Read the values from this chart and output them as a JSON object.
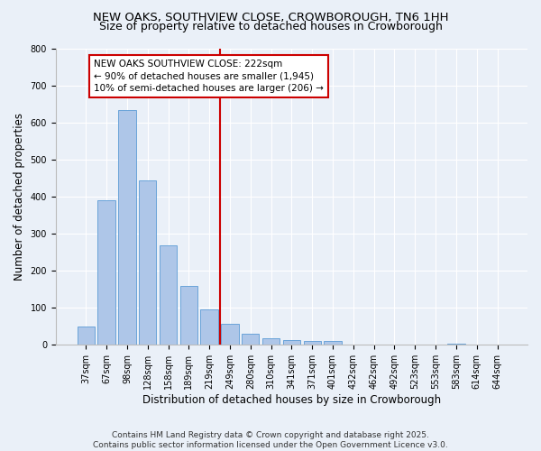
{
  "title": "NEW OAKS, SOUTHVIEW CLOSE, CROWBOROUGH, TN6 1HH",
  "subtitle": "Size of property relative to detached houses in Crowborough",
  "xlabel": "Distribution of detached houses by size in Crowborough",
  "ylabel": "Number of detached properties",
  "categories": [
    "37sqm",
    "67sqm",
    "98sqm",
    "128sqm",
    "158sqm",
    "189sqm",
    "219sqm",
    "249sqm",
    "280sqm",
    "310sqm",
    "341sqm",
    "371sqm",
    "401sqm",
    "432sqm",
    "462sqm",
    "492sqm",
    "523sqm",
    "553sqm",
    "583sqm",
    "614sqm",
    "644sqm"
  ],
  "values": [
    50,
    390,
    635,
    445,
    270,
    158,
    97,
    58,
    30,
    18,
    12,
    10,
    11,
    0,
    0,
    0,
    0,
    0,
    4,
    0,
    0
  ],
  "bar_color": "#aec6e8",
  "bar_edge_color": "#5b9bd5",
  "property_line_x": 6.5,
  "property_line_color": "#cc0000",
  "annotation_text": "NEW OAKS SOUTHVIEW CLOSE: 222sqm\n← 90% of detached houses are smaller (1,945)\n10% of semi-detached houses are larger (206) →",
  "annotation_box_color": "#ffffff",
  "annotation_box_edge_color": "#cc0000",
  "ylim": [
    0,
    800
  ],
  "yticks": [
    0,
    100,
    200,
    300,
    400,
    500,
    600,
    700,
    800
  ],
  "background_color": "#eaf0f8",
  "plot_background_color": "#eaf0f8",
  "footer_line1": "Contains HM Land Registry data © Crown copyright and database right 2025.",
  "footer_line2": "Contains public sector information licensed under the Open Government Licence v3.0.",
  "title_fontsize": 9.5,
  "subtitle_fontsize": 9,
  "tick_fontsize": 7,
  "ylabel_fontsize": 8.5,
  "xlabel_fontsize": 8.5,
  "annotation_fontsize": 7.5,
  "footer_fontsize": 6.5
}
